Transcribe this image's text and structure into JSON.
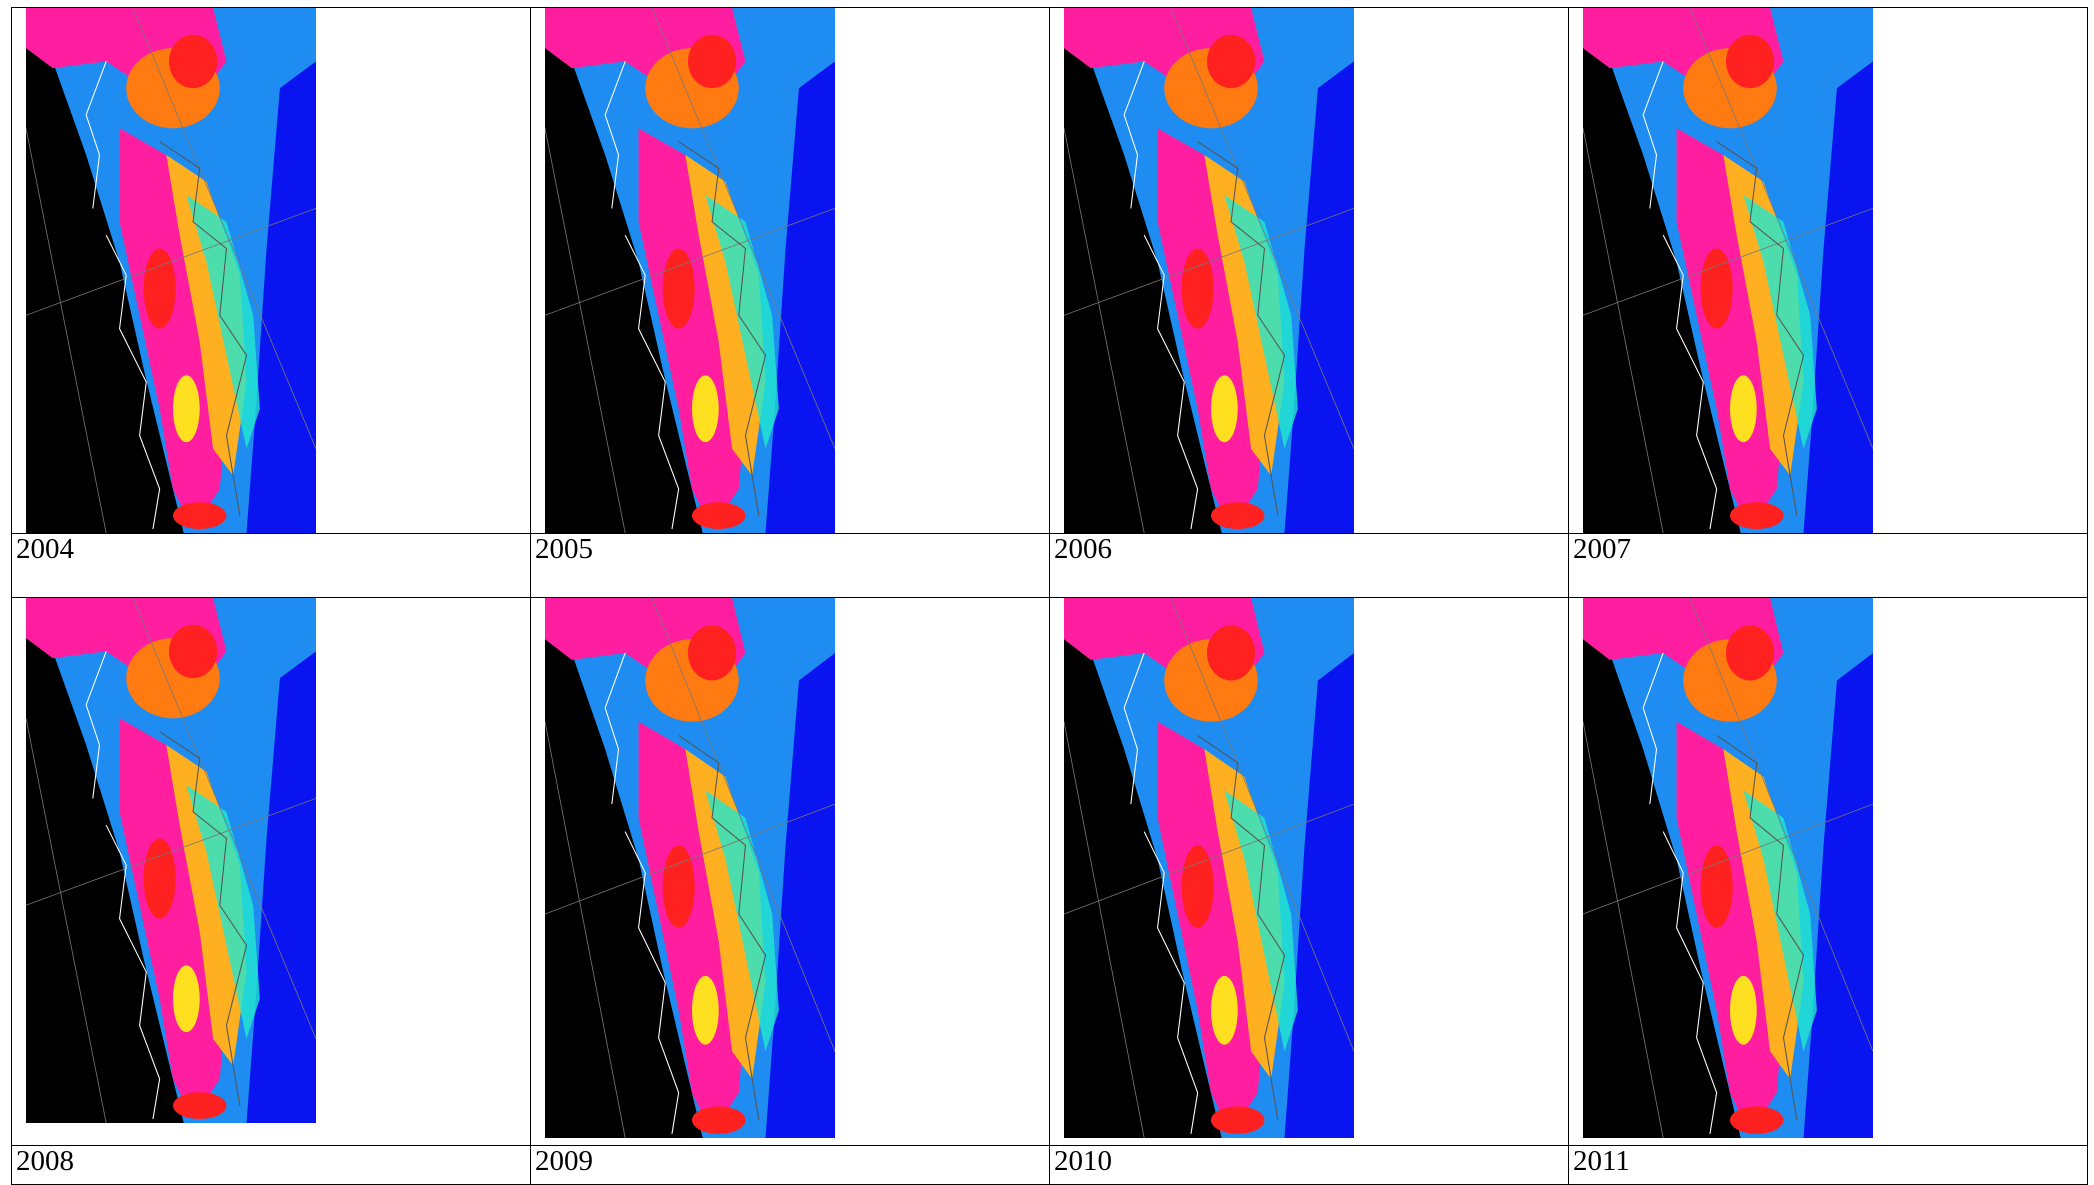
{
  "table": {
    "rows": [
      [
        "2004",
        "2005",
        "2006",
        "2007"
      ],
      [
        "2008",
        "2009",
        "2010",
        "2011"
      ]
    ]
  }
}
